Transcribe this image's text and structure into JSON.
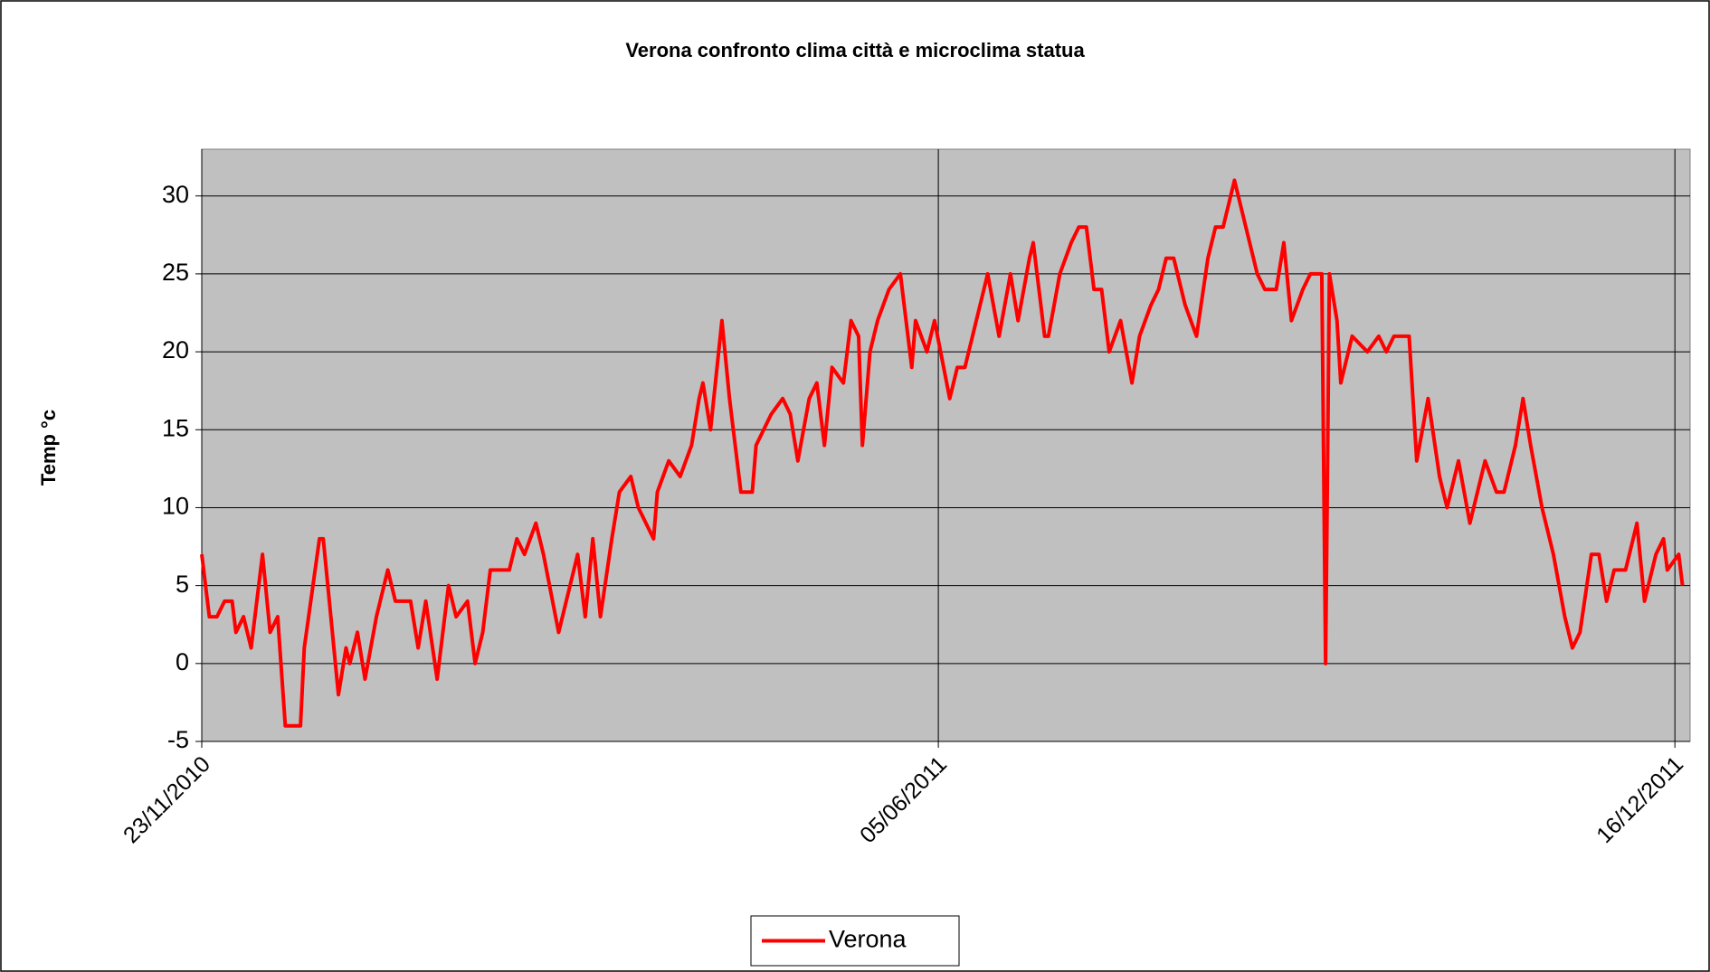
{
  "chart_data": {
    "type": "line",
    "title": "Verona confronto clima città e microclima statua",
    "y_label": "Temp °c",
    "x": [
      "2010-11-23",
      "2010-11-25",
      "2010-11-27",
      "2010-11-29",
      "2010-12-01",
      "2010-12-02",
      "2010-12-04",
      "2010-12-06",
      "2010-12-09",
      "2010-12-11",
      "2010-12-13",
      "2010-12-15",
      "2010-12-19",
      "2010-12-20",
      "2010-12-24",
      "2010-12-25",
      "2010-12-29",
      "2010-12-31",
      "2011-01-01",
      "2011-01-03",
      "2011-01-05",
      "2011-01-08",
      "2011-01-11",
      "2011-01-13",
      "2011-01-17",
      "2011-01-19",
      "2011-01-21",
      "2011-01-24",
      "2011-01-27",
      "2011-01-29",
      "2011-02-01",
      "2011-02-03",
      "2011-02-05",
      "2011-02-07",
      "2011-02-09",
      "2011-02-12",
      "2011-02-14",
      "2011-02-16",
      "2011-02-19",
      "2011-02-21",
      "2011-02-25",
      "2011-02-27",
      "2011-03-02",
      "2011-03-04",
      "2011-03-06",
      "2011-03-08",
      "2011-03-11",
      "2011-03-13",
      "2011-03-16",
      "2011-03-18",
      "2011-03-22",
      "2011-03-23",
      "2011-03-26",
      "2011-03-29",
      "2011-04-01",
      "2011-04-03",
      "2011-04-04",
      "2011-04-06",
      "2011-04-09",
      "2011-04-11",
      "2011-04-14",
      "2011-04-17",
      "2011-04-18",
      "2011-04-22",
      "2011-04-25",
      "2011-04-27",
      "2011-04-29",
      "2011-05-02",
      "2011-05-04",
      "2011-05-06",
      "2011-05-08",
      "2011-05-11",
      "2011-05-13",
      "2011-05-15",
      "2011-05-16",
      "2011-05-18",
      "2011-05-20",
      "2011-05-23",
      "2011-05-26",
      "2011-05-29",
      "2011-05-30",
      "2011-06-02",
      "2011-06-04",
      "2011-06-08",
      "2011-06-10",
      "2011-06-12",
      "2011-06-14",
      "2011-06-17",
      "2011-06-18",
      "2011-06-21",
      "2011-06-24",
      "2011-06-26",
      "2011-06-29",
      "2011-06-30",
      "2011-07-03",
      "2011-07-04",
      "2011-07-07",
      "2011-07-10",
      "2011-07-12",
      "2011-07-14",
      "2011-07-16",
      "2011-07-18",
      "2011-07-20",
      "2011-07-23",
      "2011-07-26",
      "2011-07-28",
      "2011-07-31",
      "2011-08-02",
      "2011-08-04",
      "2011-08-06",
      "2011-08-09",
      "2011-08-12",
      "2011-08-15",
      "2011-08-17",
      "2011-08-19",
      "2011-08-22",
      "2011-08-24",
      "2011-08-28",
      "2011-08-30",
      "2011-09-02",
      "2011-09-04",
      "2011-09-06",
      "2011-09-09",
      "2011-09-11",
      "2011-09-14",
      "2011-09-15",
      "2011-09-16",
      "2011-09-18",
      "2011-09-19",
      "2011-09-22",
      "2011-09-26",
      "2011-09-29",
      "2011-10-01",
      "2011-10-03",
      "2011-10-07",
      "2011-10-09",
      "2011-10-12",
      "2011-10-15",
      "2011-10-17",
      "2011-10-20",
      "2011-10-23",
      "2011-10-27",
      "2011-10-30",
      "2011-11-01",
      "2011-11-04",
      "2011-11-06",
      "2011-11-08",
      "2011-11-11",
      "2011-11-14",
      "2011-11-17",
      "2011-11-19",
      "2011-11-21",
      "2011-11-24",
      "2011-11-26",
      "2011-11-28",
      "2011-11-30",
      "2011-12-03",
      "2011-12-05",
      "2011-12-06",
      "2011-12-08",
      "2011-12-11",
      "2011-12-13",
      "2011-12-14",
      "2011-12-17",
      "2011-12-18"
    ],
    "series": [
      {
        "name": "Verona",
        "color": "#ff0000",
        "values": [
          7,
          3,
          3,
          4,
          4,
          2,
          3,
          1,
          7,
          2,
          3,
          -4,
          -4,
          1,
          8,
          8,
          -2,
          1,
          0,
          2,
          -1,
          3,
          6,
          4,
          4,
          1,
          4,
          -1,
          5,
          3,
          4,
          0,
          2,
          6,
          6,
          6,
          8,
          7,
          9,
          7,
          2,
          4,
          7,
          3,
          8,
          3,
          8,
          11,
          12,
          10,
          8,
          11,
          13,
          12,
          14,
          17,
          18,
          15,
          22,
          17,
          11,
          11,
          14,
          16,
          17,
          16,
          13,
          17,
          18,
          14,
          19,
          18,
          22,
          21,
          14,
          20,
          22,
          24,
          25,
          19,
          22,
          20,
          22,
          17,
          19,
          19,
          21,
          24,
          25,
          21,
          25,
          22,
          26,
          27,
          21,
          21,
          25,
          27,
          28,
          28,
          24,
          24,
          20,
          22,
          18,
          21,
          23,
          24,
          26,
          26,
          23,
          21,
          26,
          28,
          28,
          31,
          29,
          25,
          24,
          24,
          27,
          22,
          24,
          25,
          25,
          0,
          25,
          22,
          18,
          21,
          20,
          21,
          20,
          21,
          21,
          13,
          17,
          12,
          10,
          13,
          9,
          13,
          11,
          11,
          14,
          17,
          14,
          10,
          7,
          3,
          1,
          2,
          7,
          7,
          4,
          6,
          6,
          8,
          9,
          4,
          7,
          8,
          6,
          7,
          5
        ]
      }
    ],
    "xlim": [
      "2010-11-23",
      "2011-12-20"
    ],
    "xticks": [
      {
        "value": "2010-11-23",
        "label": "23/11/2010"
      },
      {
        "value": "2011-06-05",
        "label": "05/06/2011"
      },
      {
        "value": "2011-12-16",
        "label": "16/12/2011"
      }
    ],
    "ylim": [
      -5,
      33
    ],
    "yticks": [
      -5,
      0,
      5,
      10,
      15,
      20,
      25,
      30
    ],
    "grid": true,
    "legend": "bottom"
  }
}
